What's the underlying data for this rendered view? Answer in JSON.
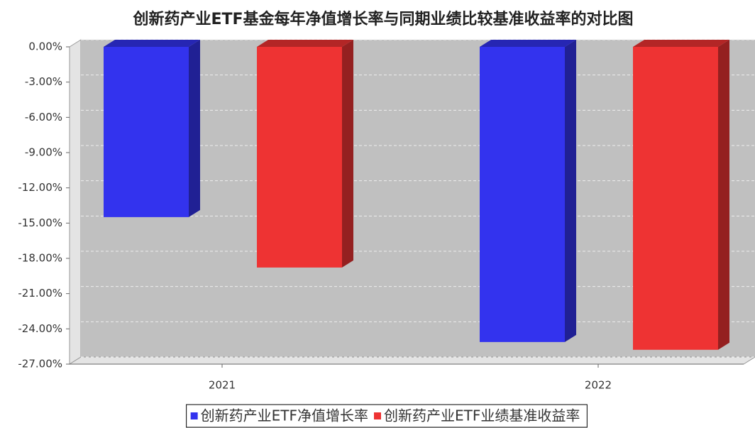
{
  "chart_data": {
    "type": "bar3d",
    "title": "创新药产业ETF基金每年净值增长率与同期业绩比较基准收益率的对比图",
    "categories": [
      "2021",
      "2022"
    ],
    "series": [
      {
        "name": "创新药产业ETF净值增长率",
        "color": "#3333ee",
        "values": [
          -14.49,
          -25.12
        ]
      },
      {
        "name": "创新药产业ETF业绩基准收益率",
        "color": "#ee3333",
        "values": [
          -18.78,
          -25.78
        ]
      }
    ],
    "ylim": [
      -27,
      0
    ],
    "yticks": [
      {
        "value": 0,
        "label": "0.00%"
      },
      {
        "value": -3,
        "label": "-3.00%"
      },
      {
        "value": -6,
        "label": "-6.00%"
      },
      {
        "value": -9,
        "label": "-9.00%"
      },
      {
        "value": -12,
        "label": "-12.00%"
      },
      {
        "value": -15,
        "label": "-15.00%"
      },
      {
        "value": -18,
        "label": "-18.00%"
      },
      {
        "value": -21,
        "label": "-21.00%"
      },
      {
        "value": -24,
        "label": "-24.00%"
      },
      {
        "value": -27,
        "label": "-27.00%"
      }
    ],
    "grid": true
  }
}
